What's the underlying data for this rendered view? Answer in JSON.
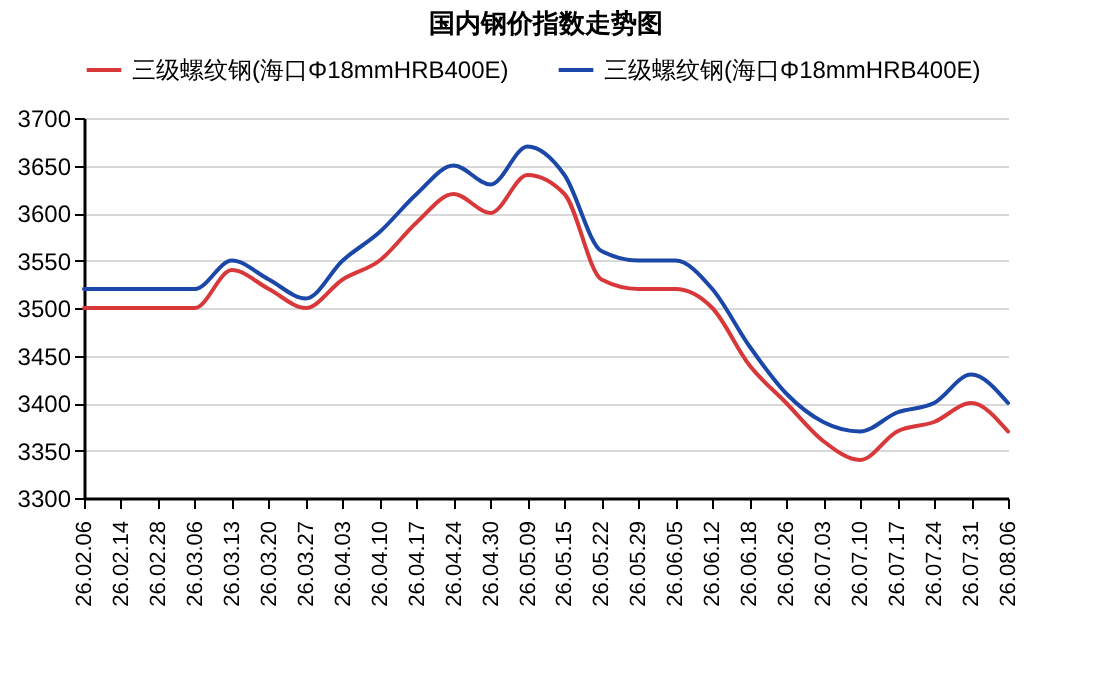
{
  "chart_data": {
    "type": "line",
    "title": "国内钢价指数走势图",
    "categories": [
      "26.02.06",
      "26.02.14",
      "26.02.28",
      "26.03.06",
      "26.03.13",
      "26.03.20",
      "26.03.27",
      "26.04.03",
      "26.04.10",
      "26.04.17",
      "26.04.24",
      "26.04.30",
      "26.05.09",
      "26.05.15",
      "26.05.22",
      "26.05.29",
      "26.06.05",
      "26.06.12",
      "26.06.18",
      "26.06.26",
      "26.07.03",
      "26.07.10",
      "26.07.17",
      "26.07.24",
      "26.07.31",
      "26.08.06"
    ],
    "series": [
      {
        "name": "三级螺纹钢(海口Φ18mmHRB400E)",
        "color": "#d9383a",
        "values": [
          3500,
          3500,
          3500,
          3500,
          3540,
          3520,
          3500,
          3530,
          3550,
          3590,
          3620,
          3600,
          3640,
          3620,
          3530,
          3520,
          3520,
          3500,
          3440,
          3400,
          3360,
          3340,
          3370,
          3380,
          3400,
          3370
        ]
      },
      {
        "name": "三级螺纹钢(海口Φ18mmHRB400E)",
        "color": "#1a47a8",
        "values": [
          3520,
          3520,
          3520,
          3520,
          3550,
          3530,
          3510,
          3550,
          3580,
          3620,
          3650,
          3630,
          3670,
          3640,
          3560,
          3550,
          3550,
          3520,
          3460,
          3410,
          3380,
          3370,
          3390,
          3400,
          3430,
          3400
        ]
      }
    ],
    "ylim": [
      3300,
      3700
    ],
    "yticks": [
      3300,
      3350,
      3400,
      3450,
      3500,
      3550,
      3600,
      3650,
      3700
    ],
    "grid": "y",
    "legend": "top",
    "marker": "none",
    "line_style": "solid"
  }
}
